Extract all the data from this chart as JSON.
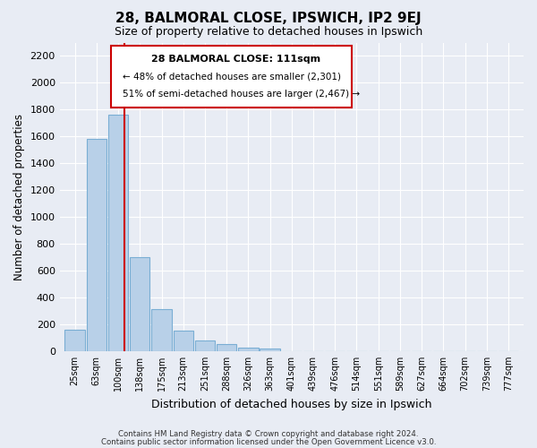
{
  "title": "28, BALMORAL CLOSE, IPSWICH, IP2 9EJ",
  "subtitle": "Size of property relative to detached houses in Ipswich",
  "xlabel": "Distribution of detached houses by size in Ipswich",
  "ylabel": "Number of detached properties",
  "bar_color": "#b8d0e8",
  "bar_edge_color": "#7aaed4",
  "background_color": "#e8ecf4",
  "grid_color": "#ffffff",
  "categories": [
    "25sqm",
    "63sqm",
    "100sqm",
    "138sqm",
    "175sqm",
    "213sqm",
    "251sqm",
    "288sqm",
    "326sqm",
    "363sqm",
    "401sqm",
    "439sqm",
    "476sqm",
    "514sqm",
    "551sqm",
    "589sqm",
    "627sqm",
    "664sqm",
    "702sqm",
    "739sqm",
    "777sqm"
  ],
  "bar_values": [
    160,
    1580,
    1760,
    700,
    310,
    155,
    80,
    50,
    25,
    20,
    0,
    0,
    0,
    0,
    0,
    0,
    0,
    0,
    0,
    0,
    0
  ],
  "ylim": [
    0,
    2300
  ],
  "yticks": [
    0,
    200,
    400,
    600,
    800,
    1000,
    1200,
    1400,
    1600,
    1800,
    2000,
    2200
  ],
  "annotation_title": "28 BALMORAL CLOSE: 111sqm",
  "annotation_line1": "← 48% of detached houses are smaller (2,301)",
  "annotation_line2": "51% of semi-detached houses are larger (2,467) →",
  "annotation_box_color": "#ffffff",
  "annotation_box_edge": "#cc0000",
  "vline_color": "#cc0000",
  "footer1": "Contains HM Land Registry data © Crown copyright and database right 2024.",
  "footer2": "Contains public sector information licensed under the Open Government Licence v3.0."
}
